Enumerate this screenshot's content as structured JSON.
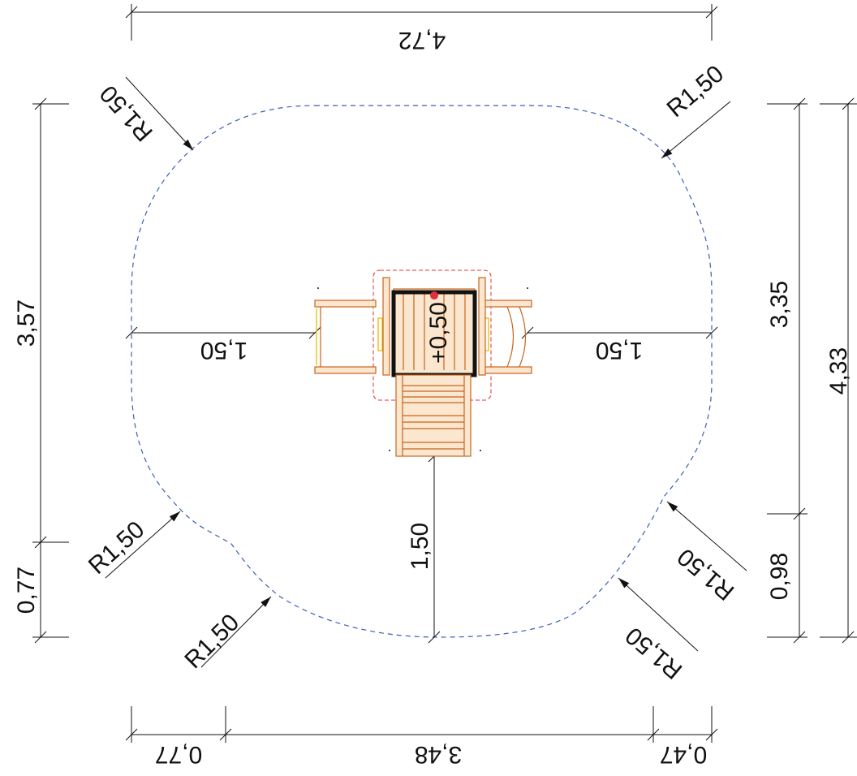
{
  "dimensions": {
    "top_width": "4,72",
    "left_total": "3,57",
    "left_bottom": "0,77",
    "right_upper": "3,35",
    "right_total": "4,33",
    "right_lower": "0,98",
    "bottom_left": "0,77",
    "bottom_mid": "3,48",
    "bottom_right": "0,47",
    "left_inner": "1,50",
    "right_inner": "1,50",
    "bottom_inner": "1,50",
    "center_height": "+0,50"
  },
  "radii": {
    "top_left": "R1,50",
    "top_right": "R1,50",
    "left_lower_1": "R1,50",
    "left_lower_2": "R1,50",
    "right_lower_1": "R1,50",
    "right_lower_2": "R1,50"
  },
  "colors": {
    "boundary": "#3b5dbb",
    "safety_zone": "#e0303a",
    "wood": "#c8651b",
    "frame": "#111111",
    "accent_yellow": "#f0c419",
    "marker_red": "#e0303a"
  }
}
